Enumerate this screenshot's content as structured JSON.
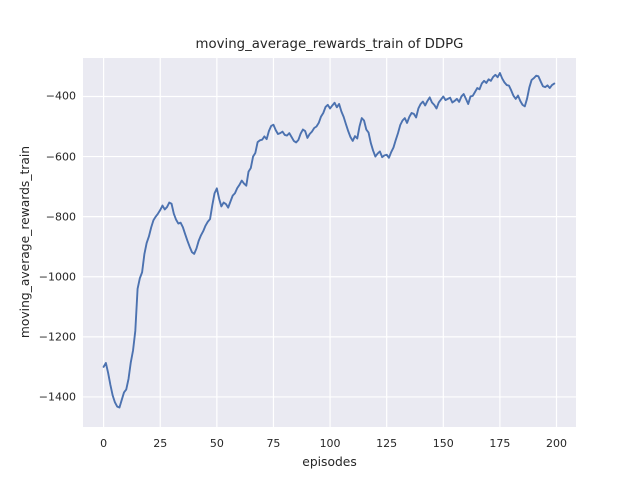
{
  "figure": {
    "background": "#ffffff",
    "axes_background": "#eaeaf2",
    "grid_color": "#ffffff",
    "text_color": "#262626"
  },
  "chart_data": {
    "type": "line",
    "title": "moving_average_rewards_train of DDPG",
    "xlabel": "episodes",
    "ylabel": "moving_average_rewards_train",
    "x_ticks": [
      0,
      25,
      50,
      75,
      100,
      125,
      150,
      175,
      200
    ],
    "y_ticks": [
      -400,
      -600,
      -800,
      -1000,
      -1200,
      -1400
    ],
    "xlim": [
      -9.1,
      208.6
    ],
    "ylim": [
      -1500,
      -272
    ],
    "grid": true,
    "legend_position": "none",
    "line_color": "#4c72b0",
    "series": [
      {
        "name": "moving_average_rewards_train",
        "x_start": 0,
        "x_step": 1,
        "y": [
          -1300,
          -1287,
          -1320,
          -1360,
          -1395,
          -1418,
          -1432,
          -1435,
          -1410,
          -1385,
          -1375,
          -1340,
          -1285,
          -1245,
          -1180,
          -1040,
          -1005,
          -985,
          -925,
          -888,
          -866,
          -836,
          -812,
          -800,
          -790,
          -778,
          -763,
          -776,
          -768,
          -753,
          -757,
          -790,
          -810,
          -823,
          -820,
          -835,
          -858,
          -880,
          -900,
          -918,
          -924,
          -906,
          -880,
          -862,
          -848,
          -830,
          -817,
          -808,
          -762,
          -722,
          -706,
          -740,
          -766,
          -753,
          -758,
          -770,
          -750,
          -730,
          -722,
          -705,
          -694,
          -680,
          -690,
          -697,
          -650,
          -638,
          -600,
          -588,
          -552,
          -546,
          -544,
          -533,
          -542,
          -515,
          -498,
          -494,
          -512,
          -525,
          -522,
          -517,
          -528,
          -530,
          -522,
          -535,
          -548,
          -553,
          -545,
          -524,
          -510,
          -515,
          -538,
          -525,
          -517,
          -505,
          -500,
          -488,
          -467,
          -455,
          -435,
          -428,
          -440,
          -430,
          -421,
          -436,
          -425,
          -450,
          -468,
          -492,
          -515,
          -535,
          -548,
          -532,
          -540,
          -500,
          -472,
          -480,
          -510,
          -520,
          -555,
          -580,
          -600,
          -590,
          -583,
          -602,
          -596,
          -594,
          -604,
          -585,
          -570,
          -545,
          -522,
          -495,
          -480,
          -472,
          -488,
          -468,
          -455,
          -458,
          -470,
          -440,
          -425,
          -417,
          -430,
          -415,
          -403,
          -420,
          -428,
          -440,
          -420,
          -410,
          -400,
          -412,
          -408,
          -404,
          -420,
          -415,
          -408,
          -418,
          -400,
          -392,
          -408,
          -425,
          -400,
          -398,
          -385,
          -372,
          -376,
          -357,
          -348,
          -355,
          -343,
          -348,
          -335,
          -328,
          -336,
          -322,
          -340,
          -353,
          -362,
          -364,
          -380,
          -398,
          -408,
          -397,
          -415,
          -428,
          -433,
          -407,
          -370,
          -345,
          -339,
          -331,
          -333,
          -350,
          -366,
          -369,
          -363,
          -372,
          -362,
          -357
        ]
      }
    ]
  }
}
